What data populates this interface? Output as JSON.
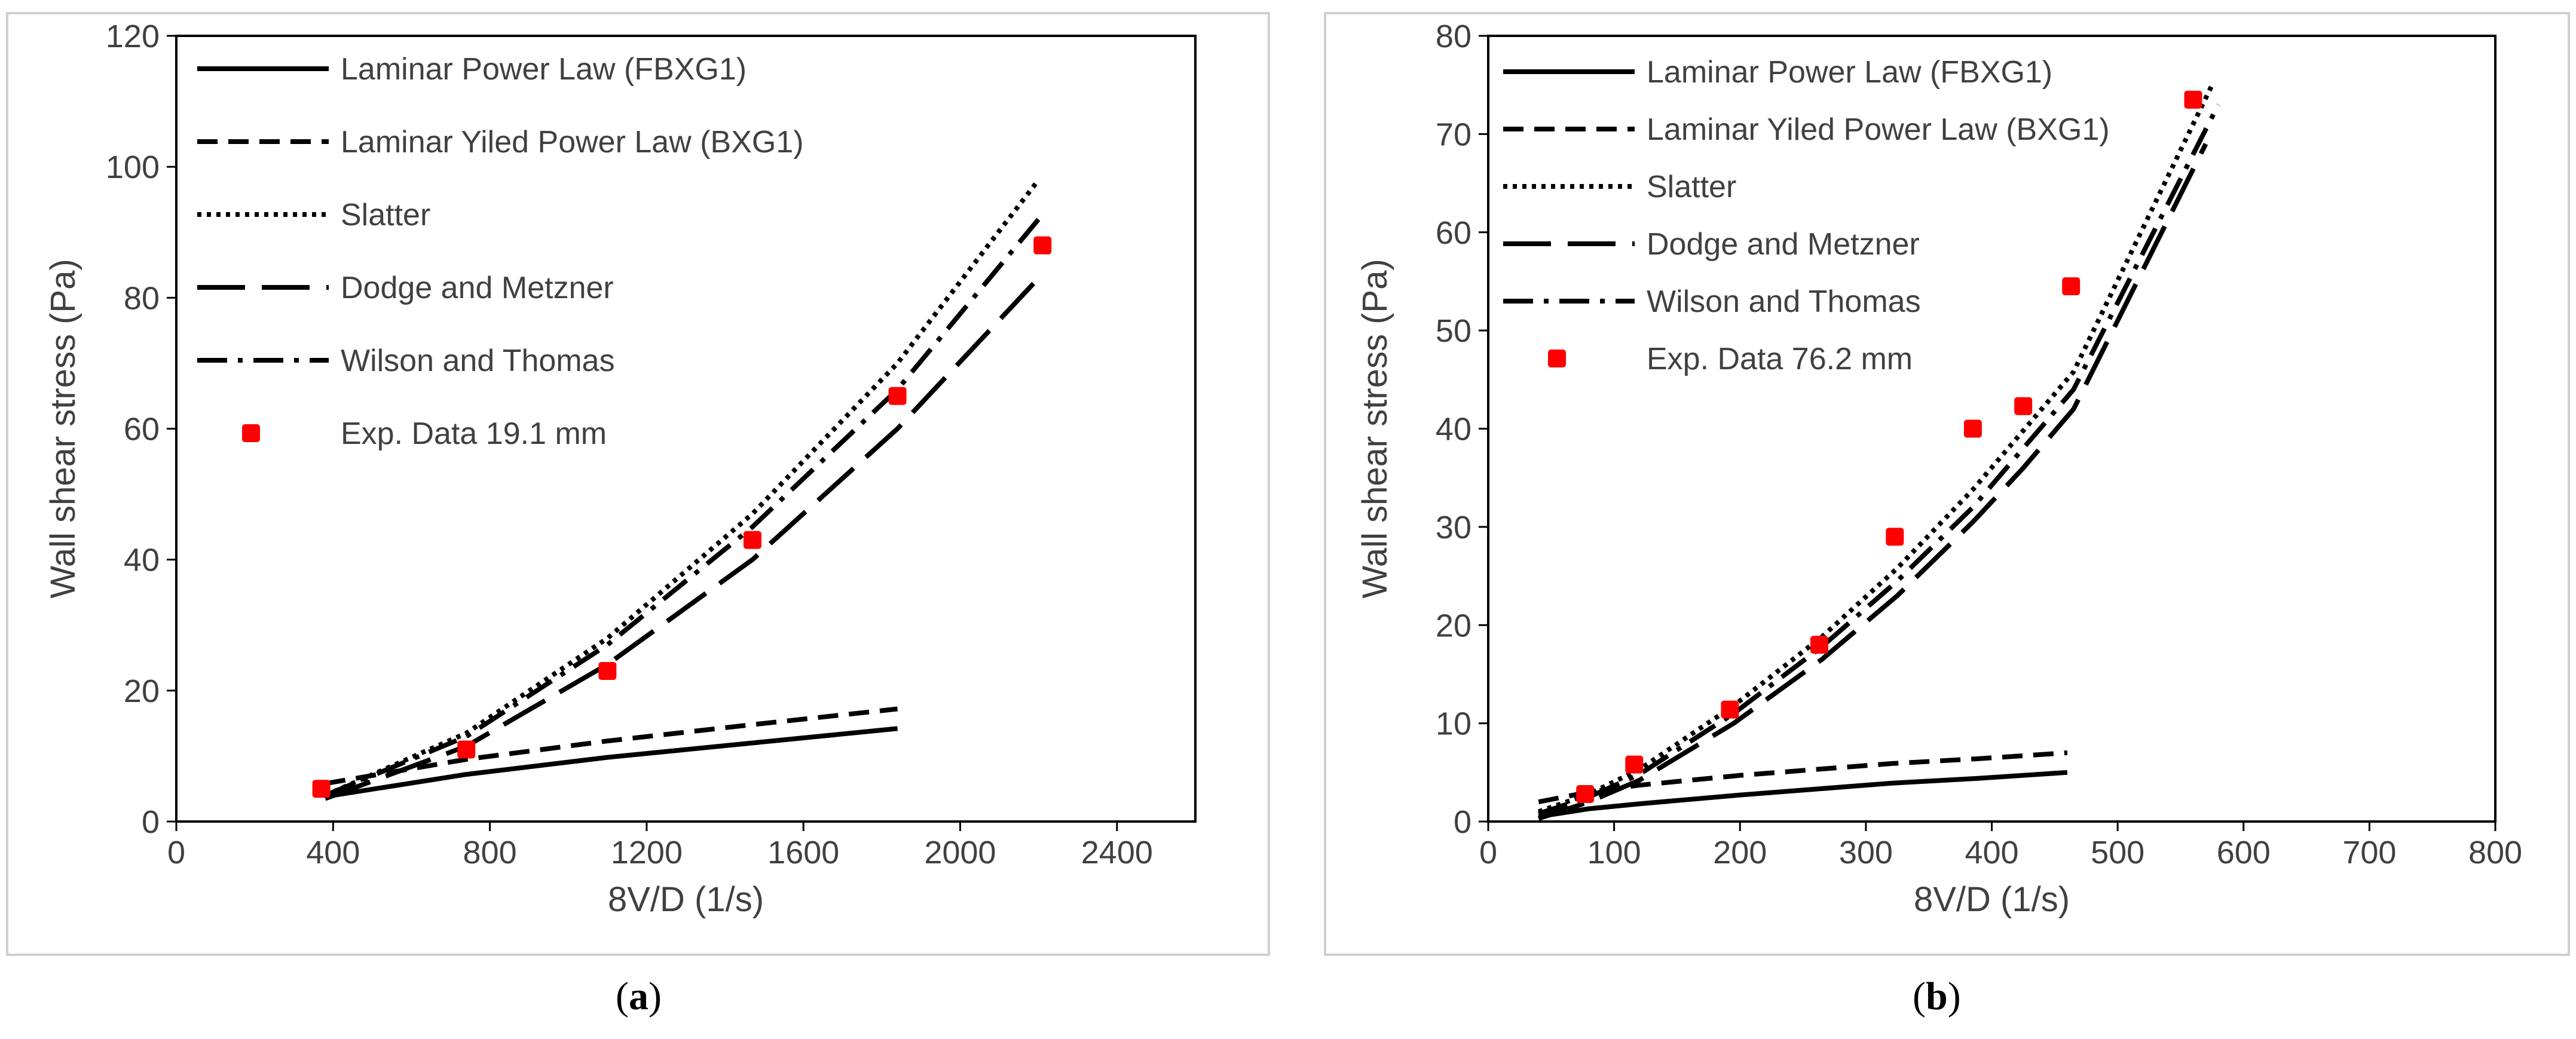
{
  "chart_data": [
    {
      "type": "line",
      "panel_label": "a",
      "xlabel": "8V/D (1/s)",
      "ylabel": "Wall shear stress (Pa)",
      "xlim": [
        0,
        2600
      ],
      "ylim": [
        0,
        120
      ],
      "xticks": [
        0,
        400,
        800,
        1200,
        1600,
        2000,
        2400
      ],
      "yticks": [
        0,
        20,
        40,
        60,
        80,
        100,
        120
      ],
      "legend_position": "top-left",
      "series": [
        {
          "name": "Laminar Power Law (FBXG1)",
          "style": "solid",
          "color": "#000000",
          "x": [
            380,
            740,
            1100,
            1470,
            1840
          ],
          "y": [
            3.8,
            7.2,
            9.8,
            12.0,
            14.2
          ]
        },
        {
          "name": "Laminar Yiled Power Law (BXG1)",
          "style": "dashed",
          "color": "#000000",
          "x": [
            380,
            740,
            1100,
            1470,
            1840
          ],
          "y": [
            5.8,
            9.5,
            12.3,
            14.8,
            17.2
          ]
        },
        {
          "name": "Slatter",
          "style": "dotted",
          "color": "#000000",
          "x": [
            380,
            740,
            1100,
            1470,
            1840,
            2200
          ],
          "y": [
            4.0,
            13.5,
            28.0,
            47.0,
            70.0,
            98.0
          ]
        },
        {
          "name": "Dodge and Metzner",
          "style": "longdash",
          "color": "#000000",
          "x": [
            380,
            740,
            1100,
            1470,
            1840,
            2200
          ],
          "y": [
            3.5,
            11.5,
            24.0,
            40.0,
            60.0,
            83.0
          ]
        },
        {
          "name": "Wilson and Thomas",
          "style": "dashdot",
          "color": "#000000",
          "x": [
            380,
            740,
            1100,
            1470,
            1840,
            2200
          ],
          "y": [
            4.0,
            13.0,
            27.0,
            45.0,
            66.0,
            92.0
          ]
        },
        {
          "name": "Exp. Data 19.1 mm",
          "style": "marker",
          "color": "#ff0000",
          "x": [
            370,
            740,
            1100,
            1470,
            1840,
            2210
          ],
          "y": [
            5.0,
            11.0,
            23.0,
            43.0,
            65.0,
            88.0
          ]
        }
      ]
    },
    {
      "type": "line",
      "panel_label": "b",
      "xlabel": "8V/D (1/s)",
      "ylabel": "Wall shear stress (Pa)",
      "xlim": [
        0,
        800
      ],
      "ylim": [
        0,
        80
      ],
      "xticks": [
        0,
        100,
        200,
        300,
        400,
        500,
        600,
        700,
        800
      ],
      "yticks": [
        0,
        10,
        20,
        30,
        40,
        50,
        60,
        70,
        80
      ],
      "legend_position": "top-left",
      "series": [
        {
          "name": "Laminar Power Law (FBXG1)",
          "style": "solid",
          "color": "#000000",
          "x": [
            40,
            80,
            120,
            200,
            260,
            320,
            390,
            460
          ],
          "y": [
            0.5,
            1.3,
            1.8,
            2.7,
            3.3,
            3.9,
            4.4,
            5.0
          ]
        },
        {
          "name": "Laminar Yiled Power Law (BXG1)",
          "style": "dashed",
          "color": "#000000",
          "x": [
            40,
            80,
            120,
            200,
            260,
            320,
            390,
            460
          ],
          "y": [
            2.0,
            3.0,
            3.7,
            4.7,
            5.3,
            5.9,
            6.4,
            7.0
          ]
        },
        {
          "name": "Slatter",
          "style": "dotted",
          "color": "#000000",
          "x": [
            40,
            80,
            120,
            195,
            265,
            325,
            385,
            425,
            465,
            575
          ],
          "y": [
            1.0,
            2.8,
            5.3,
            11.8,
            18.8,
            25.8,
            33.8,
            39.8,
            45.8,
            75.0
          ]
        },
        {
          "name": "Dodge and Metzner",
          "style": "longdash",
          "color": "#000000",
          "x": [
            40,
            80,
            120,
            195,
            265,
            325,
            385,
            425,
            465,
            570
          ],
          "y": [
            0.3,
            2.0,
            4.2,
            10.0,
            16.5,
            23.0,
            30.5,
            36.0,
            42.0,
            69.0
          ]
        },
        {
          "name": "Wilson and Thomas",
          "style": "dashdot",
          "color": "#000000",
          "x": [
            40,
            80,
            120,
            195,
            265,
            325,
            385,
            425,
            465,
            580
          ],
          "y": [
            0.8,
            2.5,
            4.8,
            11.0,
            17.8,
            24.5,
            32.0,
            38.0,
            44.0,
            73.0
          ]
        },
        {
          "name": "Exp. Data 76.2 mm",
          "style": "marker",
          "color": "#ff0000",
          "x": [
            77,
            116,
            192,
            263,
            323,
            385,
            425,
            463,
            560
          ],
          "y": [
            2.8,
            5.8,
            11.4,
            18.0,
            29.0,
            40.0,
            42.3,
            54.5,
            73.5
          ]
        }
      ]
    }
  ]
}
